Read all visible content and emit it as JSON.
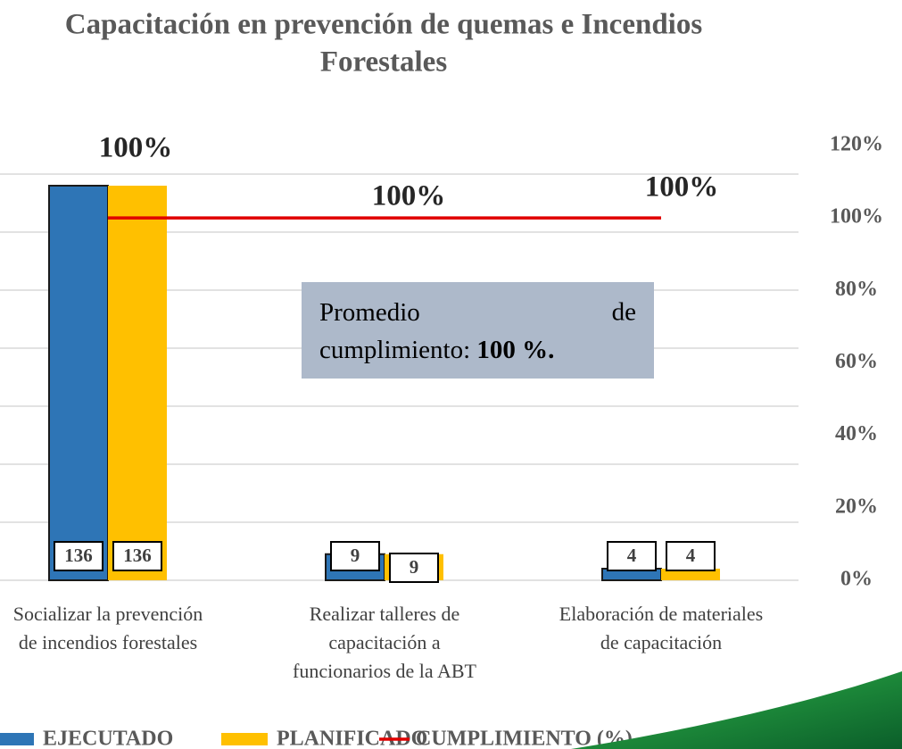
{
  "chart_data": {
    "type": "bar",
    "title": [
      "Capacitación en prevención de quemas e Incendios",
      "Forestales"
    ],
    "categories": [
      "Socializar la prevención de incendios forestales",
      "Realizar talleres de capacitación a funcionarios de la ABT",
      "Elaboración de materiales de capacitación"
    ],
    "series": [
      {
        "name": "EJECUTADO",
        "color": "#2e75b6",
        "values": [
          136,
          9,
          4
        ]
      },
      {
        "name": "PLANIFICADO",
        "color": "#ffc000",
        "values": [
          136,
          9,
          4
        ]
      },
      {
        "name": "CUMPLIMIENTO (%)",
        "color": "#e00000",
        "type": "line",
        "axis": "y2",
        "values": [
          100,
          100,
          100
        ],
        "value_labels": [
          "100%",
          "100%",
          "100%"
        ]
      }
    ],
    "ylim": [
      0,
      140
    ],
    "yticks": [
      0,
      20,
      40,
      60,
      80,
      100,
      120,
      140
    ],
    "y2lim": [
      0,
      120
    ],
    "y2ticks": [
      {
        "value": 0,
        "label": "0%"
      },
      {
        "value": 20,
        "label": "20%"
      },
      {
        "value": 40,
        "label": "40%"
      },
      {
        "value": 60,
        "label": "60%"
      },
      {
        "value": 80,
        "label": "80%"
      },
      {
        "value": 100,
        "label": "100%"
      },
      {
        "value": 120,
        "label": "120%"
      }
    ],
    "grid": true,
    "legend": "bottom",
    "annotation": {
      "text": "Promedio de cumplimiento:",
      "bold": "100 %."
    }
  }
}
